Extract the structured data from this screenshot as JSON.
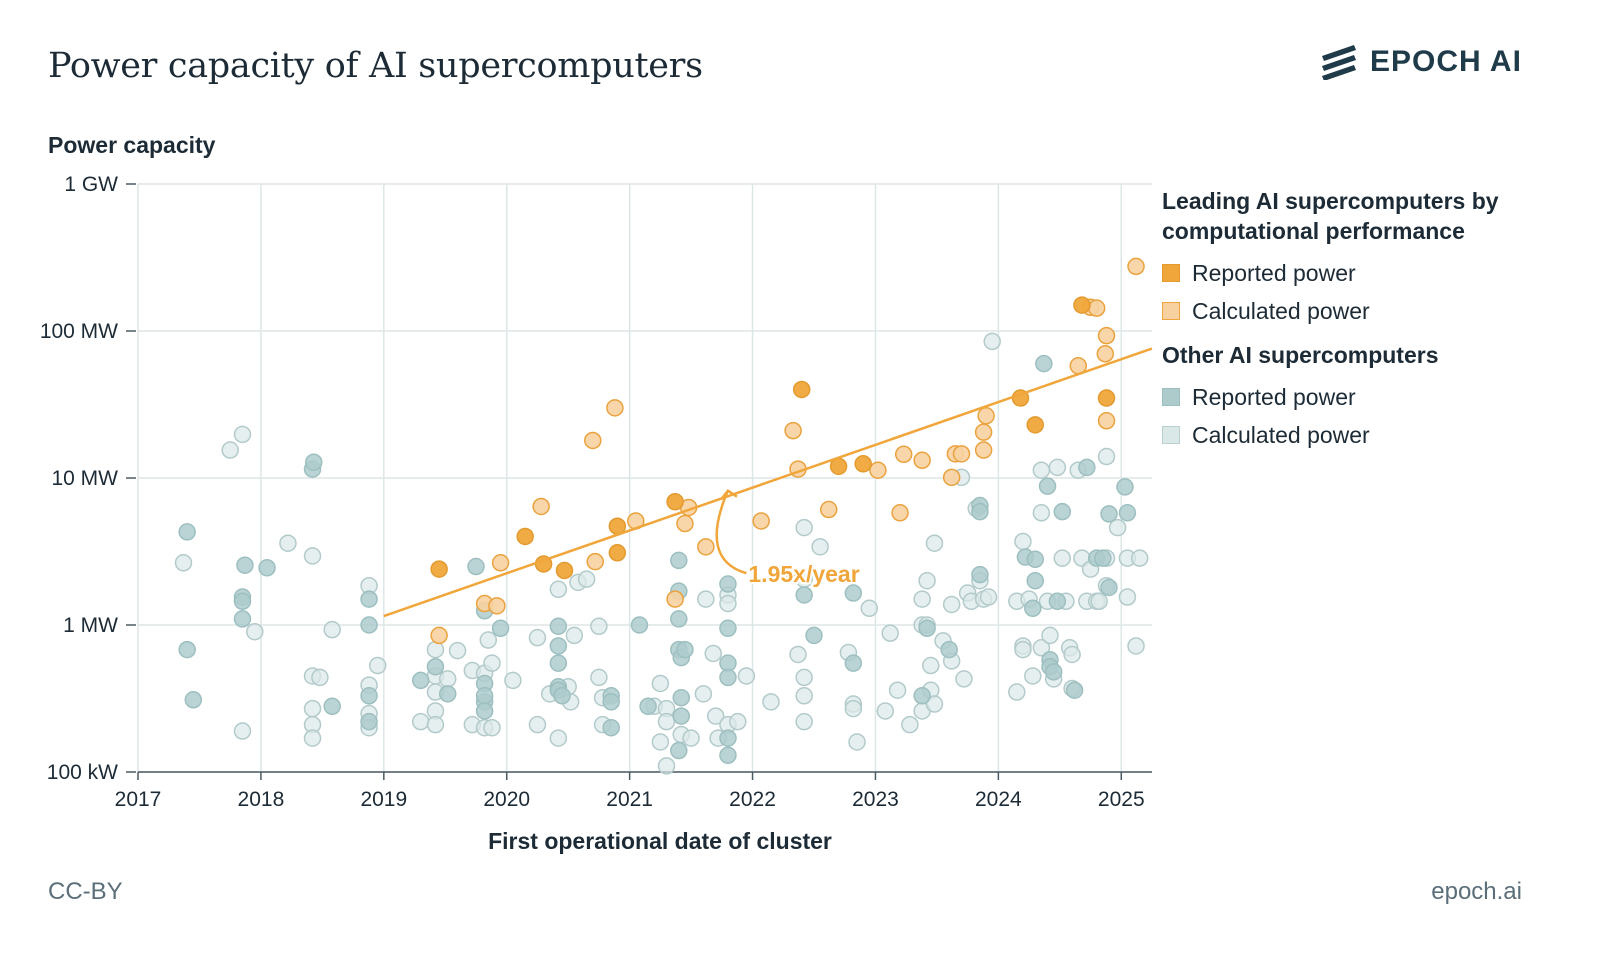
{
  "header": {
    "title": "Power capacity of AI supercomputers",
    "logo_text": "EPOCH AI"
  },
  "footer": {
    "license": "CC-BY",
    "site": "epoch.ai"
  },
  "colors": {
    "leading_reported": "#f0a63a",
    "leading_calculated": "#f7d2a0",
    "other_reported": "#aecbcc",
    "other_calculated": "#dbe8e8",
    "trend": "#f0a63a",
    "grid": "#dde6e6",
    "axis": "#4b5b63"
  },
  "legend": {
    "groups": [
      {
        "title": "Leading AI supercomputers by computational performance",
        "items": [
          {
            "label": "Reported power",
            "color": "#f0a63a",
            "style": "filled"
          },
          {
            "label": "Calculated power",
            "color": "#f7d2a0",
            "style": "light"
          }
        ]
      },
      {
        "title": "Other AI supercomputers",
        "items": [
          {
            "label": "Reported power",
            "color": "#aecbcc",
            "style": "filled"
          },
          {
            "label": "Calculated power",
            "color": "#dbe8e8",
            "style": "light"
          }
        ]
      }
    ]
  },
  "chart_data": {
    "type": "scatter",
    "title": "Power capacity of AI supercomputers",
    "xlabel": "First operational date of cluster",
    "ylabel": "Power capacity",
    "y_scale": "log",
    "grid": true,
    "legend_position": "right",
    "xlim": [
      2017,
      2025.25
    ],
    "ylim_MW": [
      0.1,
      1000
    ],
    "x_ticks": [
      "2017",
      "2018",
      "2019",
      "2020",
      "2021",
      "2022",
      "2023",
      "2024",
      "2025"
    ],
    "x_tick_values": [
      2017,
      2018,
      2019,
      2020,
      2021,
      2022,
      2023,
      2024,
      2025
    ],
    "y_ticks": [
      "1 GW",
      "100 MW",
      "10 MW",
      "1 MW",
      "100 kW"
    ],
    "y_tick_values_MW": [
      1000,
      100,
      10,
      1,
      0.1
    ],
    "trend": {
      "label": "1.95x/year",
      "start": {
        "x": 2019.0,
        "y_MW": 1.15
      },
      "end": {
        "x": 2025.25,
        "y_MW": 76
      },
      "annotation_at": {
        "x": 2021.95,
        "y_MW": 2.25
      }
    },
    "series": [
      {
        "name": "Leading AI supercomputers by computational performance — Reported power",
        "points": [
          [
            2019.45,
            2.4
          ],
          [
            2020.15,
            4.0
          ],
          [
            2020.3,
            2.6
          ],
          [
            2020.47,
            2.35
          ],
          [
            2020.9,
            4.7
          ],
          [
            2020.9,
            3.1
          ],
          [
            2021.37,
            6.9
          ],
          [
            2022.4,
            40
          ],
          [
            2022.7,
            12
          ],
          [
            2022.9,
            12.5
          ],
          [
            2024.18,
            35
          ],
          [
            2024.3,
            23
          ],
          [
            2024.68,
            150
          ],
          [
            2024.88,
            35
          ]
        ]
      },
      {
        "name": "Leading AI supercomputers by computational performance — Calculated power",
        "points": [
          [
            2019.45,
            0.85
          ],
          [
            2019.82,
            1.4
          ],
          [
            2019.92,
            1.35
          ],
          [
            2019.95,
            2.65
          ],
          [
            2020.28,
            6.4
          ],
          [
            2020.72,
            2.7
          ],
          [
            2020.7,
            18
          ],
          [
            2020.88,
            30
          ],
          [
            2021.05,
            5.1
          ],
          [
            2021.37,
            1.5
          ],
          [
            2021.45,
            4.9
          ],
          [
            2021.48,
            6.3
          ],
          [
            2021.62,
            3.4
          ],
          [
            2022.07,
            5.1
          ],
          [
            2022.28,
            2.2
          ],
          [
            2022.33,
            21
          ],
          [
            2022.37,
            11.5
          ],
          [
            2022.62,
            6.1
          ],
          [
            2023.02,
            11.3
          ],
          [
            2023.2,
            5.8
          ],
          [
            2023.23,
            14.5
          ],
          [
            2023.38,
            13.2
          ],
          [
            2023.62,
            10.1
          ],
          [
            2023.65,
            14.6
          ],
          [
            2023.7,
            14.6
          ],
          [
            2023.88,
            15.5
          ],
          [
            2023.88,
            20.5
          ],
          [
            2023.9,
            26.5
          ],
          [
            2024.65,
            58
          ],
          [
            2024.75,
            145
          ],
          [
            2024.8,
            143
          ],
          [
            2024.87,
            70
          ],
          [
            2024.88,
            93
          ],
          [
            2024.88,
            24.5
          ],
          [
            2025.12,
            275
          ]
        ]
      },
      {
        "name": "Other AI supercomputers — Reported power",
        "points": [
          [
            2017.4,
            4.3
          ],
          [
            2017.4,
            0.68
          ],
          [
            2017.45,
            0.31
          ],
          [
            2017.85,
            1.55
          ],
          [
            2017.85,
            1.45
          ],
          [
            2017.85,
            1.1
          ],
          [
            2017.87,
            2.55
          ],
          [
            2018.05,
            2.45
          ],
          [
            2018.42,
            11.5
          ],
          [
            2018.43,
            12.8
          ],
          [
            2018.58,
            0.28
          ],
          [
            2018.88,
            1.5
          ],
          [
            2018.88,
            1.0
          ],
          [
            2018.88,
            0.33
          ],
          [
            2018.88,
            0.22
          ],
          [
            2019.3,
            0.42
          ],
          [
            2019.42,
            0.52
          ],
          [
            2019.52,
            0.34
          ],
          [
            2019.75,
            2.5
          ],
          [
            2019.82,
            1.25
          ],
          [
            2019.82,
            0.4
          ],
          [
            2019.82,
            0.3
          ],
          [
            2019.82,
            0.33
          ],
          [
            2019.82,
            0.26
          ],
          [
            2019.95,
            0.95
          ],
          [
            2020.42,
            0.98
          ],
          [
            2020.42,
            0.72
          ],
          [
            2020.42,
            0.55
          ],
          [
            2020.42,
            0.38
          ],
          [
            2020.42,
            0.36
          ],
          [
            2020.45,
            0.33
          ],
          [
            2020.85,
            0.33
          ],
          [
            2020.85,
            0.3
          ],
          [
            2020.85,
            0.2
          ],
          [
            2021.08,
            1.0
          ],
          [
            2021.15,
            0.28
          ],
          [
            2021.4,
            2.75
          ],
          [
            2021.4,
            1.7
          ],
          [
            2021.4,
            1.1
          ],
          [
            2021.4,
            0.68
          ],
          [
            2021.42,
            0.6
          ],
          [
            2021.42,
            0.32
          ],
          [
            2021.42,
            0.24
          ],
          [
            2021.4,
            0.14
          ],
          [
            2021.45,
            0.68
          ],
          [
            2021.8,
            1.9
          ],
          [
            2021.8,
            0.95
          ],
          [
            2021.8,
            0.55
          ],
          [
            2021.8,
            0.44
          ],
          [
            2021.8,
            0.17
          ],
          [
            2021.8,
            0.13
          ],
          [
            2022.42,
            1.6
          ],
          [
            2022.5,
            0.85
          ],
          [
            2022.82,
            1.65
          ],
          [
            2022.82,
            0.55
          ],
          [
            2023.38,
            0.33
          ],
          [
            2023.42,
            0.95
          ],
          [
            2023.6,
            0.68
          ],
          [
            2023.85,
            6.5
          ],
          [
            2023.85,
            5.9
          ],
          [
            2023.85,
            2.2
          ],
          [
            2024.22,
            2.9
          ],
          [
            2024.28,
            1.3
          ],
          [
            2024.3,
            2.0
          ],
          [
            2024.3,
            2.8
          ],
          [
            2024.37,
            60
          ],
          [
            2024.4,
            8.8
          ],
          [
            2024.42,
            0.58
          ],
          [
            2024.42,
            0.52
          ],
          [
            2024.45,
            0.48
          ],
          [
            2024.48,
            1.45
          ],
          [
            2024.52,
            5.9
          ],
          [
            2024.62,
            0.36
          ],
          [
            2024.72,
            11.8
          ],
          [
            2024.8,
            2.85
          ],
          [
            2024.85,
            2.85
          ],
          [
            2024.9,
            5.7
          ],
          [
            2024.9,
            1.8
          ],
          [
            2025.03,
            8.7
          ],
          [
            2025.05,
            5.8
          ]
        ]
      },
      {
        "name": "Other AI supercomputers — Calculated power",
        "points": [
          [
            2017.37,
            2.65
          ],
          [
            2017.75,
            15.5
          ],
          [
            2017.85,
            19.8
          ],
          [
            2017.85,
            0.19
          ],
          [
            2017.95,
            0.9
          ],
          [
            2018.22,
            3.6
          ],
          [
            2018.42,
            2.95
          ],
          [
            2018.42,
            0.45
          ],
          [
            2018.42,
            0.27
          ],
          [
            2018.42,
            0.21
          ],
          [
            2018.42,
            0.17
          ],
          [
            2018.48,
            0.44
          ],
          [
            2018.58,
            0.93
          ],
          [
            2018.88,
            1.85
          ],
          [
            2018.88,
            0.39
          ],
          [
            2018.88,
            0.25
          ],
          [
            2018.88,
            0.2
          ],
          [
            2018.95,
            0.53
          ],
          [
            2019.3,
            0.22
          ],
          [
            2019.42,
            0.68
          ],
          [
            2019.42,
            0.45
          ],
          [
            2019.42,
            0.35
          ],
          [
            2019.42,
            0.26
          ],
          [
            2019.42,
            0.21
          ],
          [
            2019.52,
            0.43
          ],
          [
            2019.6,
            0.67
          ],
          [
            2019.72,
            0.49
          ],
          [
            2019.72,
            0.21
          ],
          [
            2019.82,
            0.47
          ],
          [
            2019.82,
            0.2
          ],
          [
            2019.85,
            0.79
          ],
          [
            2019.88,
            0.55
          ],
          [
            2019.88,
            0.2
          ],
          [
            2020.05,
            0.42
          ],
          [
            2020.25,
            0.82
          ],
          [
            2020.25,
            0.21
          ],
          [
            2020.35,
            0.34
          ],
          [
            2020.42,
            1.75
          ],
          [
            2020.42,
            0.17
          ],
          [
            2020.5,
            0.38
          ],
          [
            2020.52,
            0.3
          ],
          [
            2020.55,
            0.85
          ],
          [
            2020.58,
            1.95
          ],
          [
            2020.65,
            2.05
          ],
          [
            2020.75,
            0.98
          ],
          [
            2020.75,
            0.44
          ],
          [
            2020.78,
            0.32
          ],
          [
            2020.78,
            0.21
          ],
          [
            2021.2,
            0.28
          ],
          [
            2021.25,
            0.4
          ],
          [
            2021.25,
            0.16
          ],
          [
            2021.3,
            0.27
          ],
          [
            2021.3,
            0.22
          ],
          [
            2021.3,
            0.11
          ],
          [
            2021.42,
            0.18
          ],
          [
            2021.5,
            0.17
          ],
          [
            2021.6,
            0.34
          ],
          [
            2021.62,
            1.5
          ],
          [
            2021.68,
            0.64
          ],
          [
            2021.7,
            0.24
          ],
          [
            2021.72,
            0.17
          ],
          [
            2021.8,
            1.6
          ],
          [
            2021.8,
            1.4
          ],
          [
            2021.8,
            0.21
          ],
          [
            2021.88,
            0.22
          ],
          [
            2021.95,
            0.45
          ],
          [
            2022.15,
            0.3
          ],
          [
            2022.37,
            0.63
          ],
          [
            2022.42,
            4.6
          ],
          [
            2022.42,
            2.05
          ],
          [
            2022.42,
            0.44
          ],
          [
            2022.42,
            0.33
          ],
          [
            2022.42,
            0.22
          ],
          [
            2022.55,
            3.4
          ],
          [
            2022.78,
            0.65
          ],
          [
            2022.82,
            0.29
          ],
          [
            2022.82,
            0.27
          ],
          [
            2022.85,
            0.16
          ],
          [
            2022.95,
            1.3
          ],
          [
            2023.08,
            0.26
          ],
          [
            2023.12,
            0.88
          ],
          [
            2023.18,
            0.36
          ],
          [
            2023.28,
            0.21
          ],
          [
            2023.38,
            1.5
          ],
          [
            2023.38,
            1.0
          ],
          [
            2023.38,
            0.26
          ],
          [
            2023.42,
            2.0
          ],
          [
            2023.42,
            1.0
          ],
          [
            2023.45,
            0.53
          ],
          [
            2023.45,
            0.36
          ],
          [
            2023.48,
            0.29
          ],
          [
            2023.48,
            3.6
          ],
          [
            2023.55,
            0.78
          ],
          [
            2023.62,
            1.38
          ],
          [
            2023.62,
            0.57
          ],
          [
            2023.7,
            10.1
          ],
          [
            2023.72,
            0.43
          ],
          [
            2023.75,
            1.65
          ],
          [
            2023.78,
            1.45
          ],
          [
            2023.82,
            6.2
          ],
          [
            2023.85,
            2.0
          ],
          [
            2023.88,
            1.5
          ],
          [
            2023.92,
            1.55
          ],
          [
            2023.95,
            85
          ],
          [
            2024.15,
            1.45
          ],
          [
            2024.15,
            0.35
          ],
          [
            2024.2,
            3.7
          ],
          [
            2024.2,
            0.72
          ],
          [
            2024.2,
            0.68
          ],
          [
            2024.25,
            1.5
          ],
          [
            2024.28,
            0.45
          ],
          [
            2024.35,
            11.3
          ],
          [
            2024.35,
            5.8
          ],
          [
            2024.35,
            0.7
          ],
          [
            2024.4,
            1.45
          ],
          [
            2024.42,
            0.85
          ],
          [
            2024.45,
            0.43
          ],
          [
            2024.48,
            11.8
          ],
          [
            2024.52,
            2.85
          ],
          [
            2024.55,
            1.45
          ],
          [
            2024.58,
            0.7
          ],
          [
            2024.6,
            0.63
          ],
          [
            2024.6,
            0.37
          ],
          [
            2024.65,
            11.3
          ],
          [
            2024.68,
            2.85
          ],
          [
            2024.72,
            1.45
          ],
          [
            2024.75,
            2.4
          ],
          [
            2024.8,
            1.45
          ],
          [
            2024.82,
            1.45
          ],
          [
            2024.88,
            1.85
          ],
          [
            2024.88,
            2.85
          ],
          [
            2024.88,
            14
          ],
          [
            2024.97,
            4.6
          ],
          [
            2025.05,
            2.85
          ],
          [
            2025.05,
            1.55
          ],
          [
            2025.12,
            0.72
          ],
          [
            2025.15,
            2.85
          ]
        ]
      }
    ]
  }
}
